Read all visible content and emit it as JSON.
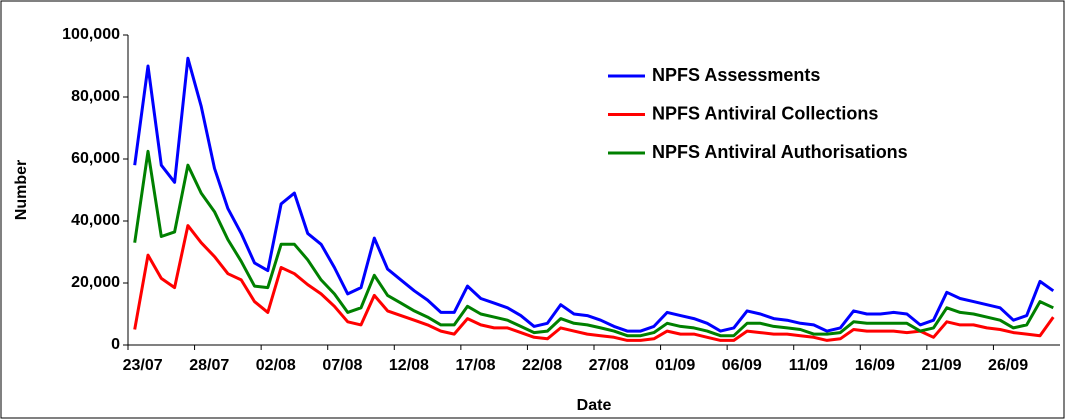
{
  "chart_data": {
    "type": "line",
    "x_label": "Date",
    "y_label": "Number",
    "categories": [
      "23/07",
      null,
      null,
      null,
      null,
      "28/07",
      null,
      null,
      null,
      null,
      "02/08",
      null,
      null,
      null,
      null,
      "07/08",
      null,
      null,
      null,
      null,
      "12/08",
      null,
      null,
      null,
      null,
      "17/08",
      null,
      null,
      null,
      null,
      "22/08",
      null,
      null,
      null,
      null,
      "27/08",
      null,
      null,
      null,
      null,
      "01/09",
      null,
      null,
      null,
      null,
      "06/09",
      null,
      null,
      null,
      null,
      "11/09",
      null,
      null,
      null,
      null,
      "16/09",
      null,
      null,
      null,
      null,
      "21/09",
      null,
      null,
      null,
      null,
      "26/09",
      null,
      null,
      null,
      null
    ],
    "series": [
      {
        "name": "NPFS Assessments",
        "color": "#0000ff",
        "values": [
          58000,
          90000,
          58000,
          52500,
          92500,
          77000,
          57000,
          44000,
          36000,
          26500,
          24000,
          45500,
          49000,
          36000,
          32500,
          25000,
          16500,
          18500,
          34500,
          24500,
          21000,
          17500,
          14500,
          10500,
          10500,
          19000,
          15000,
          13500,
          12000,
          9500,
          6000,
          7000,
          13000,
          10000,
          9500,
          8000,
          6000,
          4500,
          4500,
          6000,
          10500,
          9500,
          8500,
          7000,
          4500,
          5500,
          11000,
          10000,
          8500,
          8000,
          7000,
          6500,
          4500,
          5500,
          11000,
          10000,
          10000,
          10500,
          10000,
          6500,
          8000,
          17000,
          15000,
          14000,
          13000,
          12000,
          8000,
          9500,
          20500,
          17500
        ]
      },
      {
        "name": "NPFS Antiviral Collections",
        "color": "#ff0000",
        "values": [
          5000,
          29000,
          21500,
          18500,
          38500,
          33000,
          28500,
          23000,
          21000,
          14000,
          10500,
          25000,
          23000,
          19500,
          16500,
          12500,
          7500,
          6500,
          16000,
          11000,
          9500,
          8000,
          6500,
          4500,
          3500,
          8500,
          6500,
          5500,
          5500,
          4000,
          2500,
          2000,
          5500,
          4500,
          3500,
          3000,
          2500,
          1500,
          1500,
          2000,
          4500,
          3500,
          3500,
          2500,
          1500,
          1500,
          4500,
          4000,
          3500,
          3500,
          3000,
          2500,
          1500,
          2000,
          5000,
          4500,
          4500,
          4500,
          4000,
          4500,
          2500,
          7500,
          6500,
          6500,
          5500,
          5000,
          4000,
          3500,
          3000,
          9000
        ]
      },
      {
        "name": "NPFS Antiviral Authorisations",
        "color": "#008000",
        "values": [
          33000,
          62500,
          35000,
          36500,
          58000,
          49000,
          43000,
          34000,
          27000,
          19000,
          18500,
          32500,
          32500,
          27500,
          21000,
          16500,
          10500,
          12000,
          22500,
          16000,
          13500,
          11000,
          9000,
          6500,
          6500,
          12500,
          10000,
          9000,
          8000,
          6000,
          4000,
          4500,
          8500,
          7000,
          6500,
          5500,
          4500,
          3000,
          3000,
          4000,
          7000,
          6000,
          5500,
          4500,
          3000,
          3000,
          7000,
          7000,
          6000,
          5500,
          5000,
          3500,
          3500,
          4000,
          7500,
          7000,
          7000,
          7000,
          7000,
          4500,
          5500,
          12000,
          10500,
          10000,
          9000,
          8000,
          5500,
          6500,
          14000,
          12000
        ]
      }
    ],
    "ylim": [
      0,
      100000
    ],
    "yticks": [
      0,
      {
        "value": 20000,
        "label": "20,000"
      },
      {
        "value": 40000,
        "label": "40,000"
      },
      {
        "value": 60000,
        "label": "60,000"
      },
      {
        "value": 80000,
        "label": "80,000"
      },
      {
        "value": 100000,
        "label": "100,000"
      }
    ],
    "legend": "top-right",
    "grid": false
  }
}
